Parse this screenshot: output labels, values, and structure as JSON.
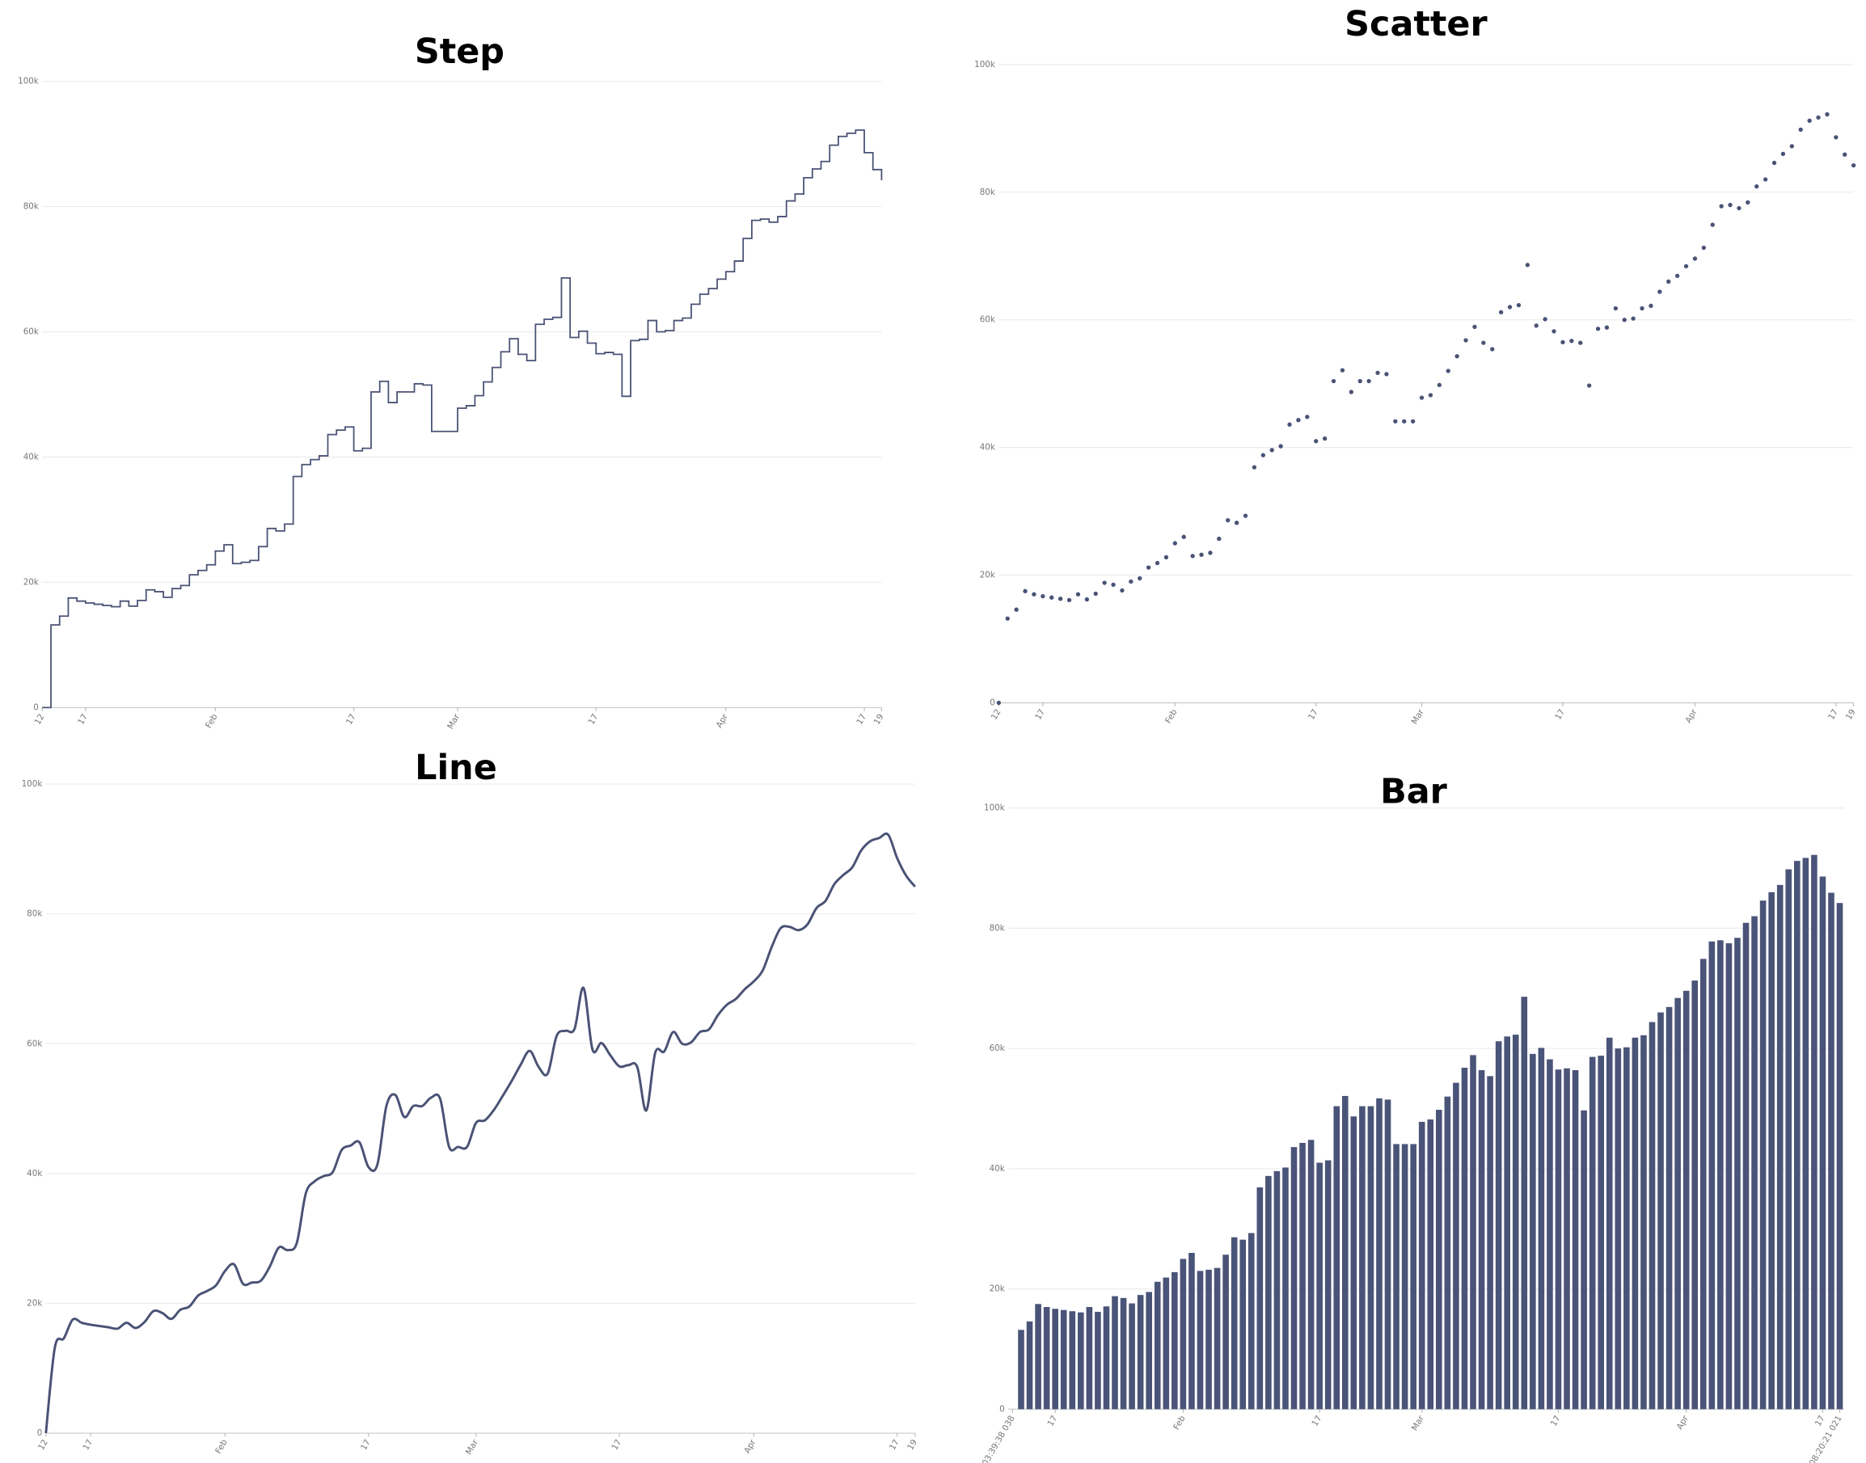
{
  "chart_data": [
    {
      "type": "step",
      "title": "Step",
      "color": "#4a5275",
      "grid": true,
      "x": [
        "Jan 12",
        "Jan 13",
        "Jan 14",
        "Jan 15",
        "Jan 16",
        "Jan 17",
        "Jan 18",
        "Jan 19",
        "Jan 20",
        "Jan 21",
        "Jan 22",
        "Jan 23",
        "Jan 24",
        "Jan 25",
        "Jan 26",
        "Jan 27",
        "Jan 28",
        "Jan 29",
        "Jan 30",
        "Jan 31",
        "Feb 1",
        "Feb 2",
        "Feb 3",
        "Feb 4",
        "Feb 5",
        "Feb 6",
        "Feb 7",
        "Feb 8",
        "Feb 9",
        "Feb 10",
        "Feb 11",
        "Feb 12",
        "Feb 13",
        "Feb 14",
        "Feb 15",
        "Feb 16",
        "Feb 17",
        "Feb 18",
        "Feb 19",
        "Feb 20",
        "Feb 21",
        "Feb 22",
        "Feb 23",
        "Feb 24",
        "Feb 25",
        "Feb 26",
        "Feb 27",
        "Feb 28",
        "Mar 1",
        "Mar 2",
        "Mar 3",
        "Mar 4",
        "Mar 5",
        "Mar 6",
        "Mar 7",
        "Mar 8",
        "Mar 9",
        "Mar 10",
        "Mar 11",
        "Mar 12",
        "Mar 13",
        "Mar 14",
        "Mar 15",
        "Mar 16",
        "Mar 17",
        "Mar 18",
        "Mar 19",
        "Mar 20",
        "Mar 21",
        "Mar 22",
        "Mar 23",
        "Mar 24",
        "Mar 25",
        "Mar 26",
        "Mar 27",
        "Mar 28",
        "Mar 29",
        "Mar 30",
        "Mar 31",
        "Apr 1",
        "Apr 2",
        "Apr 3",
        "Apr 4",
        "Apr 5",
        "Apr 6",
        "Apr 7",
        "Apr 8",
        "Apr 9",
        "Apr 10",
        "Apr 11",
        "Apr 12",
        "Apr 13",
        "Apr 14",
        "Apr 15",
        "Apr 16",
        "Apr 17",
        "Apr 18",
        "Apr 19"
      ],
      "values": [
        0,
        13200,
        14600,
        17500,
        17000,
        16700,
        16500,
        16300,
        16100,
        17000,
        16200,
        17100,
        18800,
        18500,
        17600,
        19000,
        19500,
        21200,
        21900,
        22800,
        25000,
        26000,
        23000,
        23200,
        23500,
        25700,
        28600,
        28200,
        29300,
        36900,
        38800,
        39600,
        40200,
        43600,
        44300,
        44800,
        41000,
        41400,
        50400,
        52100,
        48700,
        50400,
        50400,
        51700,
        51500,
        44100,
        44100,
        44100,
        47800,
        48200,
        49800,
        52000,
        54300,
        56800,
        58900,
        56400,
        55400,
        61200,
        62000,
        62300,
        68600,
        59100,
        60100,
        58200,
        56500,
        56700,
        56400,
        49700,
        58600,
        58800,
        61800,
        60000,
        60200,
        61800,
        62200,
        64400,
        66000,
        66900,
        68400,
        69600,
        71300,
        74900,
        77800,
        78000,
        77500,
        78400,
        80900,
        82000,
        84600,
        86000,
        87200,
        89800,
        91200,
        91700,
        92200,
        88600,
        85900,
        84200
      ],
      "ylim": [
        0,
        100000
      ],
      "yticks": [
        0,
        {
          "value": 20000,
          "label": "20k"
        },
        {
          "value": 40000,
          "label": "40k"
        },
        {
          "value": 60000,
          "label": "60k"
        },
        {
          "value": 80000,
          "label": "80k"
        },
        {
          "value": 100000,
          "label": "100k"
        }
      ],
      "xticks": [
        {
          "value": "Jan 12",
          "label": "12"
        },
        {
          "value": "Jan 17",
          "label": "17"
        },
        {
          "value": "Feb 1",
          "label": "Feb"
        },
        {
          "value": "Feb 17",
          "label": "17"
        },
        {
          "value": "Mar 1",
          "label": "Mar"
        },
        {
          "value": "Mar 17",
          "label": "17"
        },
        {
          "value": "Apr 1",
          "label": "Apr"
        },
        {
          "value": "Apr 17",
          "label": "17"
        },
        {
          "value": "Apr 19",
          "label": "19"
        }
      ]
    },
    {
      "type": "scatter",
      "title": "Scatter",
      "color": "#4a5275",
      "grid": true,
      "x": [
        "Jan 12",
        "Jan 13",
        "Jan 14",
        "Jan 15",
        "Jan 16",
        "Jan 17",
        "Jan 18",
        "Jan 19",
        "Jan 20",
        "Jan 21",
        "Jan 22",
        "Jan 23",
        "Jan 24",
        "Jan 25",
        "Jan 26",
        "Jan 27",
        "Jan 28",
        "Jan 29",
        "Jan 30",
        "Jan 31",
        "Feb 1",
        "Feb 2",
        "Feb 3",
        "Feb 4",
        "Feb 5",
        "Feb 6",
        "Feb 7",
        "Feb 8",
        "Feb 9",
        "Feb 10",
        "Feb 11",
        "Feb 12",
        "Feb 13",
        "Feb 14",
        "Feb 15",
        "Feb 16",
        "Feb 17",
        "Feb 18",
        "Feb 19",
        "Feb 20",
        "Feb 21",
        "Feb 22",
        "Feb 23",
        "Feb 24",
        "Feb 25",
        "Feb 26",
        "Feb 27",
        "Feb 28",
        "Mar 1",
        "Mar 2",
        "Mar 3",
        "Mar 4",
        "Mar 5",
        "Mar 6",
        "Mar 7",
        "Mar 8",
        "Mar 9",
        "Mar 10",
        "Mar 11",
        "Mar 12",
        "Mar 13",
        "Mar 14",
        "Mar 15",
        "Mar 16",
        "Mar 17",
        "Mar 18",
        "Mar 19",
        "Mar 20",
        "Mar 21",
        "Mar 22",
        "Mar 23",
        "Mar 24",
        "Mar 25",
        "Mar 26",
        "Mar 27",
        "Mar 28",
        "Mar 29",
        "Mar 30",
        "Mar 31",
        "Apr 1",
        "Apr 2",
        "Apr 3",
        "Apr 4",
        "Apr 5",
        "Apr 6",
        "Apr 7",
        "Apr 8",
        "Apr 9",
        "Apr 10",
        "Apr 11",
        "Apr 12",
        "Apr 13",
        "Apr 14",
        "Apr 15",
        "Apr 16",
        "Apr 17",
        "Apr 18",
        "Apr 19"
      ],
      "values": [
        0,
        13200,
        14600,
        17500,
        17000,
        16700,
        16500,
        16300,
        16100,
        17000,
        16200,
        17100,
        18800,
        18500,
        17600,
        19000,
        19500,
        21200,
        21900,
        22800,
        25000,
        26000,
        23000,
        23200,
        23500,
        25700,
        28600,
        28200,
        29300,
        36900,
        38800,
        39600,
        40200,
        43600,
        44300,
        44800,
        41000,
        41400,
        50400,
        52100,
        48700,
        50400,
        50400,
        51700,
        51500,
        44100,
        44100,
        44100,
        47800,
        48200,
        49800,
        52000,
        54300,
        56800,
        58900,
        56400,
        55400,
        61200,
        62000,
        62300,
        68600,
        59100,
        60100,
        58200,
        56500,
        56700,
        56400,
        49700,
        58600,
        58800,
        61800,
        60000,
        60200,
        61800,
        62200,
        64400,
        66000,
        66900,
        68400,
        69600,
        71300,
        74900,
        77800,
        78000,
        77500,
        78400,
        80900,
        82000,
        84600,
        86000,
        87200,
        89800,
        91200,
        91700,
        92200,
        88600,
        85900,
        84200
      ],
      "ylim": [
        0,
        100000
      ],
      "yticks": [
        0,
        {
          "value": 20000,
          "label": "20k"
        },
        {
          "value": 40000,
          "label": "40k"
        },
        {
          "value": 60000,
          "label": "60k"
        },
        {
          "value": 80000,
          "label": "80k"
        },
        {
          "value": 100000,
          "label": "100k"
        }
      ],
      "xticks": [
        {
          "value": "Jan 12",
          "label": "12"
        },
        {
          "value": "Jan 17",
          "label": "17"
        },
        {
          "value": "Feb 1",
          "label": "Feb"
        },
        {
          "value": "Feb 17",
          "label": "17"
        },
        {
          "value": "Mar 1",
          "label": "Mar"
        },
        {
          "value": "Mar 17",
          "label": "17"
        },
        {
          "value": "Apr 1",
          "label": "Apr"
        },
        {
          "value": "Apr 17",
          "label": "17"
        },
        {
          "value": "Apr 19",
          "label": "19"
        }
      ]
    },
    {
      "type": "line",
      "title": "Line",
      "color": "#4a5275",
      "grid": true,
      "x": [
        "Jan 12",
        "Jan 13",
        "Jan 14",
        "Jan 15",
        "Jan 16",
        "Jan 17",
        "Jan 18",
        "Jan 19",
        "Jan 20",
        "Jan 21",
        "Jan 22",
        "Jan 23",
        "Jan 24",
        "Jan 25",
        "Jan 26",
        "Jan 27",
        "Jan 28",
        "Jan 29",
        "Jan 30",
        "Jan 31",
        "Feb 1",
        "Feb 2",
        "Feb 3",
        "Feb 4",
        "Feb 5",
        "Feb 6",
        "Feb 7",
        "Feb 8",
        "Feb 9",
        "Feb 10",
        "Feb 11",
        "Feb 12",
        "Feb 13",
        "Feb 14",
        "Feb 15",
        "Feb 16",
        "Feb 17",
        "Feb 18",
        "Feb 19",
        "Feb 20",
        "Feb 21",
        "Feb 22",
        "Feb 23",
        "Feb 24",
        "Feb 25",
        "Feb 26",
        "Feb 27",
        "Feb 28",
        "Mar 1",
        "Mar 2",
        "Mar 3",
        "Mar 4",
        "Mar 5",
        "Mar 6",
        "Mar 7",
        "Mar 8",
        "Mar 9",
        "Mar 10",
        "Mar 11",
        "Mar 12",
        "Mar 13",
        "Mar 14",
        "Mar 15",
        "Mar 16",
        "Mar 17",
        "Mar 18",
        "Mar 19",
        "Mar 20",
        "Mar 21",
        "Mar 22",
        "Mar 23",
        "Mar 24",
        "Mar 25",
        "Mar 26",
        "Mar 27",
        "Mar 28",
        "Mar 29",
        "Mar 30",
        "Mar 31",
        "Apr 1",
        "Apr 2",
        "Apr 3",
        "Apr 4",
        "Apr 5",
        "Apr 6",
        "Apr 7",
        "Apr 8",
        "Apr 9",
        "Apr 10",
        "Apr 11",
        "Apr 12",
        "Apr 13",
        "Apr 14",
        "Apr 15",
        "Apr 16",
        "Apr 17",
        "Apr 18",
        "Apr 19"
      ],
      "values": [
        0,
        13200,
        14600,
        17500,
        17000,
        16700,
        16500,
        16300,
        16100,
        17000,
        16200,
        17100,
        18800,
        18500,
        17600,
        19000,
        19500,
        21200,
        21900,
        22800,
        25000,
        26000,
        23000,
        23200,
        23500,
        25700,
        28600,
        28200,
        29300,
        36900,
        38800,
        39600,
        40200,
        43600,
        44300,
        44800,
        41000,
        41400,
        50400,
        52100,
        48700,
        50400,
        50400,
        51700,
        51500,
        44100,
        44100,
        44100,
        47800,
        48200,
        49800,
        52000,
        54300,
        56800,
        58900,
        56400,
        55400,
        61200,
        62000,
        62300,
        68600,
        59100,
        60100,
        58200,
        56500,
        56700,
        56400,
        49700,
        58600,
        58800,
        61800,
        60000,
        60200,
        61800,
        62200,
        64400,
        66000,
        66900,
        68400,
        69600,
        71300,
        74900,
        77800,
        78000,
        77500,
        78400,
        80900,
        82000,
        84600,
        86000,
        87200,
        89800,
        91200,
        91700,
        92200,
        88600,
        85900,
        84200
      ],
      "ylim": [
        0,
        100000
      ],
      "yticks": [
        0,
        {
          "value": 20000,
          "label": "20k"
        },
        {
          "value": 40000,
          "label": "40k"
        },
        {
          "value": 60000,
          "label": "60k"
        },
        {
          "value": 80000,
          "label": "80k"
        },
        {
          "value": 100000,
          "label": "100k"
        }
      ],
      "xticks": [
        {
          "value": "Jan 12",
          "label": "12"
        },
        {
          "value": "Jan 17",
          "label": "17"
        },
        {
          "value": "Feb 1",
          "label": "Feb"
        },
        {
          "value": "Feb 17",
          "label": "17"
        },
        {
          "value": "Mar 1",
          "label": "Mar"
        },
        {
          "value": "Mar 17",
          "label": "17"
        },
        {
          "value": "Apr 1",
          "label": "Apr"
        },
        {
          "value": "Apr 17",
          "label": "17"
        },
        {
          "value": "Apr 19",
          "label": "19"
        }
      ]
    },
    {
      "type": "bar",
      "title": "Bar",
      "color": "#4a5478",
      "grid": true,
      "x": [
        "Jan 12",
        "Jan 13",
        "Jan 14",
        "Jan 15",
        "Jan 16",
        "Jan 17",
        "Jan 18",
        "Jan 19",
        "Jan 20",
        "Jan 21",
        "Jan 22",
        "Jan 23",
        "Jan 24",
        "Jan 25",
        "Jan 26",
        "Jan 27",
        "Jan 28",
        "Jan 29",
        "Jan 30",
        "Jan 31",
        "Feb 1",
        "Feb 2",
        "Feb 3",
        "Feb 4",
        "Feb 5",
        "Feb 6",
        "Feb 7",
        "Feb 8",
        "Feb 9",
        "Feb 10",
        "Feb 11",
        "Feb 12",
        "Feb 13",
        "Feb 14",
        "Feb 15",
        "Feb 16",
        "Feb 17",
        "Feb 18",
        "Feb 19",
        "Feb 20",
        "Feb 21",
        "Feb 22",
        "Feb 23",
        "Feb 24",
        "Feb 25",
        "Feb 26",
        "Feb 27",
        "Feb 28",
        "Mar 1",
        "Mar 2",
        "Mar 3",
        "Mar 4",
        "Mar 5",
        "Mar 6",
        "Mar 7",
        "Mar 8",
        "Mar 9",
        "Mar 10",
        "Mar 11",
        "Mar 12",
        "Mar 13",
        "Mar 14",
        "Mar 15",
        "Mar 16",
        "Mar 17",
        "Mar 18",
        "Mar 19",
        "Mar 20",
        "Mar 21",
        "Mar 22",
        "Mar 23",
        "Mar 24",
        "Mar 25",
        "Mar 26",
        "Mar 27",
        "Mar 28",
        "Mar 29",
        "Mar 30",
        "Mar 31",
        "Apr 1",
        "Apr 2",
        "Apr 3",
        "Apr 4",
        "Apr 5",
        "Apr 6",
        "Apr 7",
        "Apr 8",
        "Apr 9",
        "Apr 10",
        "Apr 11",
        "Apr 12",
        "Apr 13",
        "Apr 14",
        "Apr 15",
        "Apr 16",
        "Apr 17",
        "Apr 18",
        "Apr 19"
      ],
      "values": [
        0,
        13200,
        14600,
        17500,
        17000,
        16700,
        16500,
        16300,
        16100,
        17000,
        16200,
        17100,
        18800,
        18500,
        17600,
        19000,
        19500,
        21200,
        21900,
        22800,
        25000,
        26000,
        23000,
        23200,
        23500,
        25700,
        28600,
        28200,
        29300,
        36900,
        38800,
        39600,
        40200,
        43600,
        44300,
        44800,
        41000,
        41400,
        50400,
        52100,
        48700,
        50400,
        50400,
        51700,
        51500,
        44100,
        44100,
        44100,
        47800,
        48200,
        49800,
        52000,
        54300,
        56800,
        58900,
        56400,
        55400,
        61200,
        62000,
        62300,
        68600,
        59100,
        60100,
        58200,
        56500,
        56700,
        56400,
        49700,
        58600,
        58800,
        61800,
        60000,
        60200,
        61800,
        62200,
        64400,
        66000,
        66900,
        68400,
        69600,
        71300,
        74900,
        77800,
        78000,
        77500,
        78400,
        80900,
        82000,
        84600,
        86000,
        87200,
        89800,
        91200,
        91700,
        92200,
        88600,
        85900,
        84200
      ],
      "ylim": [
        0,
        100000
      ],
      "yticks": [
        0,
        {
          "value": 20000,
          "label": "20k"
        },
        {
          "value": 40000,
          "label": "40k"
        },
        {
          "value": 60000,
          "label": "60k"
        },
        {
          "value": 80000,
          "label": "80k"
        },
        {
          "value": 100000,
          "label": "100k"
        }
      ],
      "xticks": [
        {
          "value": "Jan 12",
          "label": "03:39:38 038"
        },
        {
          "value": "Jan 17",
          "label": "17"
        },
        {
          "value": "Feb 1",
          "label": "Feb"
        },
        {
          "value": "Feb 17",
          "label": "17"
        },
        {
          "value": "Mar 1",
          "label": "Mar"
        },
        {
          "value": "Mar 17",
          "label": "17"
        },
        {
          "value": "Apr 1",
          "label": "Apr"
        },
        {
          "value": "Apr 17",
          "label": "17"
        },
        {
          "value": "Apr 19",
          "label": "08:20:21 021"
        }
      ]
    }
  ]
}
